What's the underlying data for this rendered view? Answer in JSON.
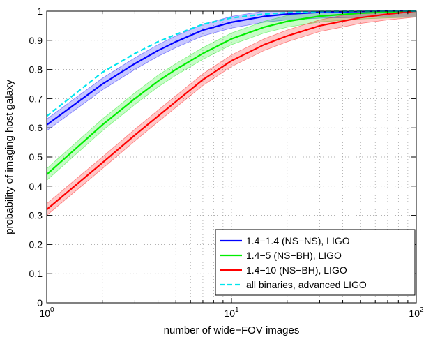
{
  "chart_data": {
    "type": "line",
    "xlabel": "number of wide−FOV images",
    "ylabel": "probability of imaging host galaxy",
    "x_scale": "log",
    "xlim": [
      1,
      100
    ],
    "ylim": [
      0,
      1
    ],
    "grid": true,
    "legend_position": "bottom-right",
    "x_ticks": [
      {
        "value": 1,
        "base": "10",
        "exp": "0"
      },
      {
        "value": 10,
        "base": "10",
        "exp": "1"
      },
      {
        "value": 100,
        "base": "10",
        "exp": "2"
      }
    ],
    "y_ticks": [
      {
        "value": 0,
        "label": "0"
      },
      {
        "value": 0.1,
        "label": "0.1"
      },
      {
        "value": 0.2,
        "label": "0.2"
      },
      {
        "value": 0.3,
        "label": "0.3"
      },
      {
        "value": 0.4,
        "label": "0.4"
      },
      {
        "value": 0.5,
        "label": "0.5"
      },
      {
        "value": 0.6,
        "label": "0.6"
      },
      {
        "value": 0.7,
        "label": "0.7"
      },
      {
        "value": 0.8,
        "label": "0.8"
      },
      {
        "value": 0.9,
        "label": "0.9"
      },
      {
        "value": 1,
        "label": "1"
      }
    ],
    "x": [
      1,
      2,
      3,
      4,
      5,
      7,
      10,
      15,
      20,
      30,
      50,
      70,
      100
    ],
    "series": [
      {
        "name": "1.4−1.4 (NS−NS), LIGO",
        "color": "#0000ff",
        "line_style": "solid",
        "values": [
          0.61,
          0.75,
          0.82,
          0.865,
          0.895,
          0.935,
          0.962,
          0.982,
          0.99,
          0.996,
          0.999,
          1.0,
          1.0
        ],
        "band": 0.02
      },
      {
        "name": "1.4−5 (NS−BH), LIGO",
        "color": "#00ee00",
        "line_style": "solid",
        "values": [
          0.44,
          0.61,
          0.7,
          0.76,
          0.8,
          0.855,
          0.905,
          0.945,
          0.965,
          0.983,
          0.993,
          0.997,
          1.0
        ],
        "band": 0.02
      },
      {
        "name": "1.4−10 (NS−BH), LIGO",
        "color": "#ff0000",
        "line_style": "solid",
        "values": [
          0.32,
          0.48,
          0.575,
          0.64,
          0.69,
          0.765,
          0.83,
          0.885,
          0.915,
          0.95,
          0.978,
          0.99,
          1.0
        ],
        "band": 0.02
      },
      {
        "name": "all binaries, advanced LIGO",
        "color": "#00e5ee",
        "line_style": "dashed",
        "values": [
          0.64,
          0.79,
          0.855,
          0.895,
          0.92,
          0.955,
          0.977,
          0.99,
          0.995,
          0.999,
          1.0,
          1.0,
          1.0
        ],
        "band": 0.02
      }
    ]
  }
}
